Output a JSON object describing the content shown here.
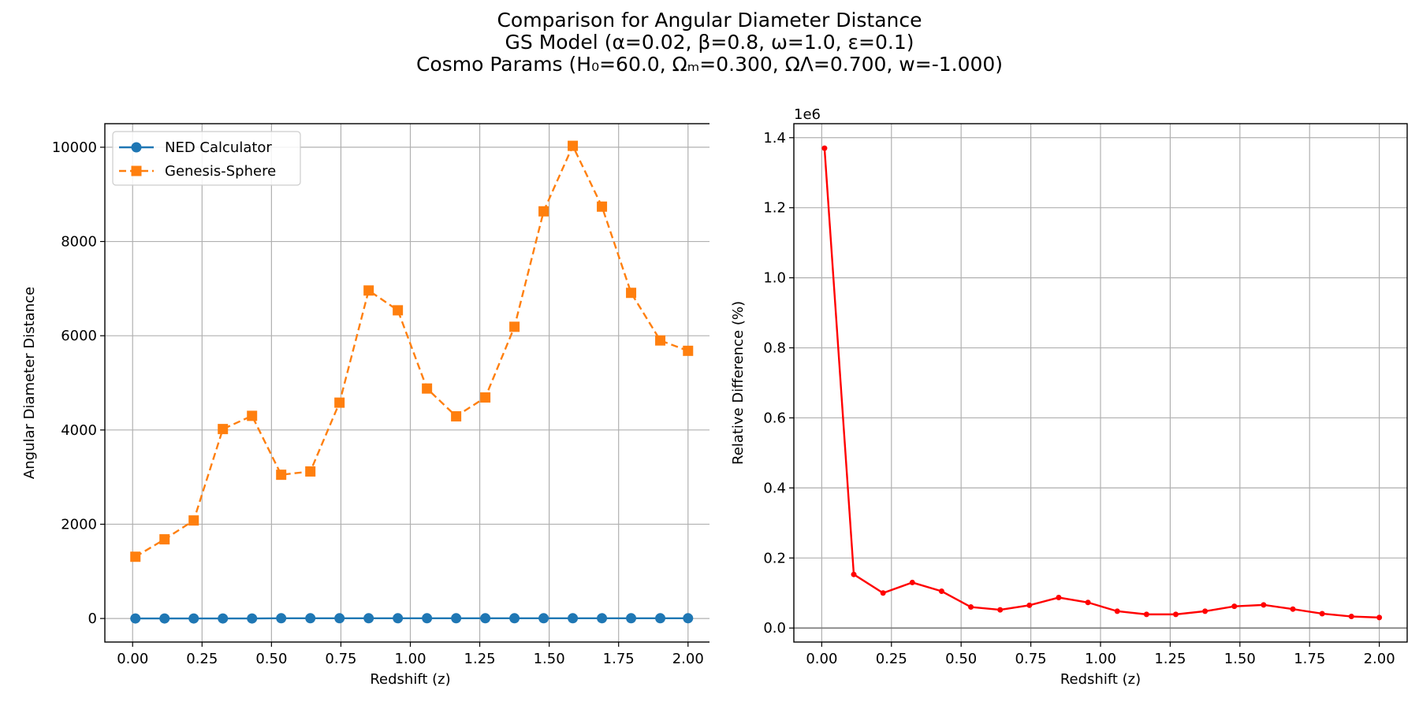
{
  "title_lines": [
    "Comparison for Angular Diameter Distance",
    "GS Model (α=0.02, β=0.8, ω=1.0, ε=0.1)",
    "Cosmo Params (H₀=60.0, Ωₘ=0.300, ΩΛ=0.700, w=-1.000)"
  ],
  "colors": {
    "ned": "#1f77b4",
    "gs": "#ff7f0e",
    "diff": "#ff0000",
    "grid": "#b0b0b0"
  },
  "chart_data": [
    {
      "type": "line",
      "xlabel": "Redshift (z)",
      "ylabel": "Angular Diameter Distance",
      "xlim": [
        -0.1,
        2.1
      ],
      "ylim": [
        -500,
        10500
      ],
      "xticks": [
        "0.00",
        "0.25",
        "0.50",
        "0.75",
        "1.00",
        "1.25",
        "1.50",
        "1.75",
        "2.00"
      ],
      "yticks": [
        "0",
        "2000",
        "4000",
        "6000",
        "8000",
        "10000"
      ],
      "grid": true,
      "legend": "upper-left",
      "x": [
        0.01,
        0.115,
        0.22,
        0.325,
        0.43,
        0.535,
        0.64,
        0.745,
        0.85,
        0.955,
        1.06,
        1.165,
        1.27,
        1.375,
        1.48,
        1.585,
        1.69,
        1.795,
        1.9,
        2.0
      ],
      "series": [
        {
          "name": "NED Calculator",
          "marker": "circle",
          "linestyle": "solid",
          "values": [
            0,
            0,
            0,
            0,
            0,
            5,
            5,
            5,
            5,
            5,
            5,
            5,
            5,
            5,
            5,
            5,
            5,
            5,
            5,
            5
          ]
        },
        {
          "name": "Genesis-Sphere",
          "marker": "square",
          "linestyle": "dashed",
          "values": [
            1310,
            1680,
            2080,
            4020,
            4300,
            3050,
            3120,
            4580,
            6960,
            6540,
            4880,
            4290,
            4690,
            6190,
            8640,
            10030,
            8740,
            6910,
            5900,
            5680
          ]
        }
      ]
    },
    {
      "type": "line",
      "xlabel": "Redshift (z)",
      "ylabel": "Relative Difference (%)",
      "y_offset_text": "1e6",
      "xlim": [
        -0.1,
        2.1
      ],
      "ylim": [
        -0.04,
        1.44
      ],
      "xticks": [
        "0.00",
        "0.25",
        "0.50",
        "0.75",
        "1.00",
        "1.25",
        "1.50",
        "1.75",
        "2.00"
      ],
      "yticks": [
        "0.0",
        "0.2",
        "0.4",
        "0.6",
        "0.8",
        "1.0",
        "1.2",
        "1.4"
      ],
      "grid": true,
      "reference_line_y": 0,
      "x": [
        0.01,
        0.115,
        0.22,
        0.325,
        0.43,
        0.535,
        0.64,
        0.745,
        0.85,
        0.955,
        1.06,
        1.165,
        1.27,
        1.375,
        1.48,
        1.585,
        1.69,
        1.795,
        1.9,
        2.0
      ],
      "series": [
        {
          "marker": "dot",
          "linestyle": "solid",
          "values": [
            1.37,
            0.153,
            0.1,
            0.13,
            0.105,
            0.06,
            0.052,
            0.065,
            0.087,
            0.073,
            0.048,
            0.039,
            0.039,
            0.048,
            0.062,
            0.066,
            0.054,
            0.041,
            0.033,
            0.03
          ]
        }
      ]
    }
  ]
}
